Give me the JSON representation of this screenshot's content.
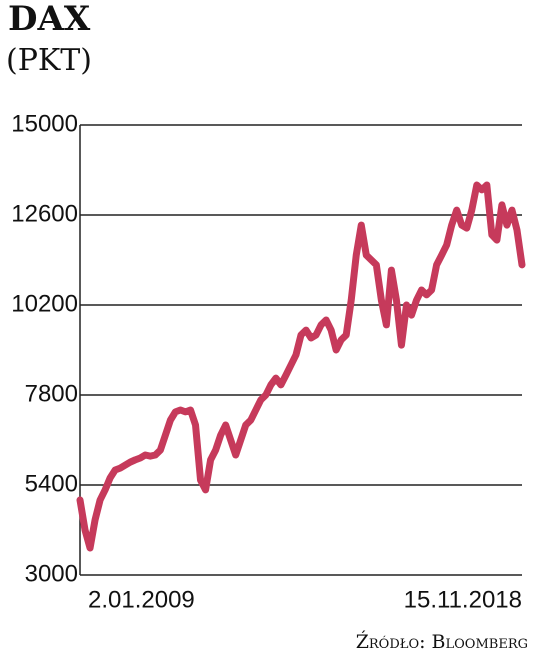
{
  "chart_data": {
    "type": "line",
    "title": "DAX",
    "subtitle": "(PKT)",
    "source": "Źródło: Bloomberg",
    "categories": [
      "2.01.2009",
      null,
      null,
      null,
      null,
      null,
      null,
      null,
      null,
      null,
      null,
      null,
      null,
      null,
      null,
      null,
      null,
      null,
      null,
      null,
      null,
      null,
      null,
      null,
      null,
      null,
      null,
      null,
      null,
      null,
      null,
      null,
      null,
      null,
      null,
      null,
      null,
      null,
      null,
      null,
      null,
      null,
      null,
      null,
      null,
      null,
      null,
      null,
      null,
      null,
      null,
      null,
      null,
      null,
      null,
      null,
      null,
      null,
      null,
      null,
      null,
      null,
      null,
      null,
      null,
      null,
      null,
      null,
      null,
      null,
      null,
      null,
      null,
      null,
      null,
      null,
      null,
      null,
      null,
      null,
      null,
      null,
      null,
      null,
      null,
      null,
      null,
      null,
      "15.11.2018"
    ],
    "series": [
      {
        "name": "DAX",
        "color": "#c63a5b",
        "values": [
          5000,
          4200,
          3720,
          4470,
          5000,
          5270,
          5590,
          5800,
          5850,
          5930,
          6010,
          6070,
          6120,
          6200,
          6170,
          6200,
          6330,
          6730,
          7130,
          7350,
          7400,
          7350,
          7400,
          7000,
          5530,
          5270,
          6070,
          6330,
          6730,
          7000,
          6600,
          6200,
          6600,
          7000,
          7130,
          7400,
          7670,
          7800,
          8070,
          8250,
          8070,
          8330,
          8600,
          8870,
          9400,
          9530,
          9320,
          9400,
          9670,
          9800,
          9530,
          9000,
          9270,
          9400,
          10330,
          11530,
          12330,
          11530,
          11400,
          11270,
          10330,
          9670,
          11130,
          10330,
          9130,
          10200,
          9930,
          10330,
          10600,
          10470,
          10600,
          11270,
          11530,
          11800,
          12330,
          12730,
          12330,
          12250,
          12730,
          13400,
          13270,
          13400,
          12070,
          11930,
          12870,
          12330,
          12730,
          12200,
          11270
        ]
      }
    ],
    "ylim": [
      3000,
      15000
    ],
    "yticks": [
      3000,
      5400,
      7800,
      10200,
      12600,
      15000
    ],
    "grid": true
  }
}
